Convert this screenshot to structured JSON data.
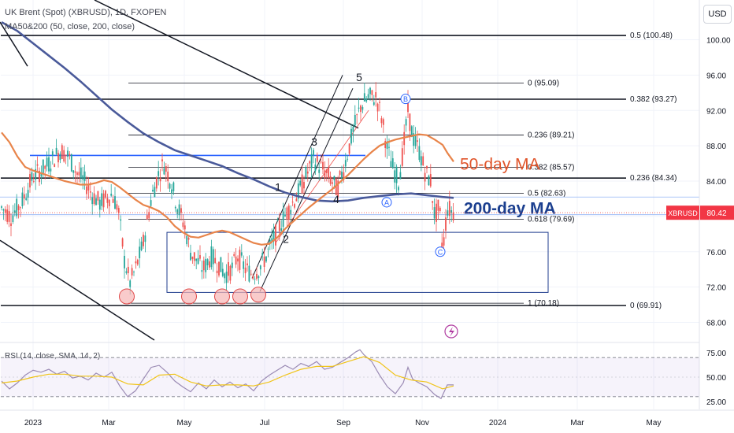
{
  "header": {
    "symbol_line": "UK Brent (Spot) (XBRUSD), 1D, FXOPEN",
    "indicator_line": "MA50&200 (50, close, 200, close)",
    "currency": "USD"
  },
  "rsi_header": "RSI (14, close, SMA, 14, 2)",
  "price_tag": {
    "symbol": "XBRUSD",
    "value": "80.42",
    "color": "#f23645"
  },
  "annotations": {
    "ma50_label": "50-day MA",
    "ma200_label": "200-day MA",
    "wave_labels": [
      "1",
      "2",
      "3",
      "4",
      "5"
    ],
    "abc_labels": [
      "A",
      "B",
      "C"
    ]
  },
  "colors": {
    "ma50": "#e8844a",
    "ma200": "#4a5a9a",
    "candle_up": "#26a69a",
    "candle_down": "#ef5350",
    "rsi": "#9b8bb4",
    "rsi_sma": "#f0c419",
    "blue_line": "#2962ff",
    "ma200_text": "#1b3f8f",
    "marker_fill": "#f7b5b5",
    "marker_stroke": "#e04a4a"
  },
  "chart_data": {
    "type": "candlestick",
    "title": "UK Brent (Spot) (XBRUSD), 1D, FXOPEN",
    "y_axis": {
      "ticks": [
        68.0,
        72.0,
        76.0,
        80.0,
        84.0,
        88.0,
        92.0,
        96.0,
        100.0
      ],
      "ylim": [
        66.0,
        104.5
      ]
    },
    "x_axis": {
      "ticks": [
        "2023",
        "Mar",
        "May",
        "Jul",
        "Sep",
        "Nov",
        "2024",
        "Mar",
        "May"
      ]
    },
    "last_price": 80.42,
    "fib_right": [
      {
        "label": "0.5 (100.48)",
        "value": 100.48
      },
      {
        "label": "0.382 (93.27)",
        "value": 93.27
      },
      {
        "label": "0.236 (84.34)",
        "value": 84.34
      },
      {
        "label": "0 (69.91)",
        "value": 69.91
      }
    ],
    "fib_inner": [
      {
        "label": "0 (95.09)",
        "value": 95.09
      },
      {
        "label": "0.236 (89.21)",
        "value": 89.21
      },
      {
        "label": "0.382 (85.57)",
        "value": 85.57
      },
      {
        "label": "0.5 (82.63)",
        "value": 82.63
      },
      {
        "label": "0.618 (79.69)",
        "value": 79.69
      },
      {
        "label": "1 (70.18)",
        "value": 70.18
      }
    ],
    "resistance_level": 86.9,
    "range_box": {
      "top": 78.2,
      "bottom": 71.4
    },
    "support_lows": [
      71.3,
      71.3,
      71.3,
      71.3,
      71.5
    ],
    "ma50": {
      "name": "50-day MA",
      "points": [
        [
          0,
          89.5
        ],
        [
          10,
          88.4
        ],
        [
          20,
          86.8
        ],
        [
          30,
          85.6
        ],
        [
          40,
          85.2
        ],
        [
          50,
          84.9
        ],
        [
          60,
          84.6
        ],
        [
          70,
          84.3
        ],
        [
          80,
          84.0
        ],
        [
          90,
          83.8
        ],
        [
          100,
          83.6
        ],
        [
          110,
          83.6
        ],
        [
          120,
          83.8
        ],
        [
          130,
          84.1
        ],
        [
          140,
          83.9
        ],
        [
          150,
          83.3
        ],
        [
          160,
          82.6
        ],
        [
          170,
          81.9
        ],
        [
          180,
          81.3
        ],
        [
          190,
          81.0
        ],
        [
          200,
          80.6
        ],
        [
          210,
          79.9
        ],
        [
          220,
          78.9
        ],
        [
          230,
          78.2
        ],
        [
          240,
          77.7
        ],
        [
          250,
          77.6
        ],
        [
          260,
          77.9
        ],
        [
          270,
          78.2
        ],
        [
          280,
          78.4
        ],
        [
          290,
          78.2
        ],
        [
          300,
          77.8
        ],
        [
          310,
          77.4
        ],
        [
          320,
          77.0
        ],
        [
          330,
          76.8
        ],
        [
          340,
          76.9
        ],
        [
          350,
          77.6
        ],
        [
          360,
          78.6
        ],
        [
          370,
          79.4
        ],
        [
          380,
          80.2
        ],
        [
          390,
          81.0
        ],
        [
          400,
          81.7
        ],
        [
          410,
          82.4
        ],
        [
          420,
          83.1
        ],
        [
          430,
          83.9
        ],
        [
          440,
          84.7
        ],
        [
          450,
          85.6
        ],
        [
          460,
          86.5
        ],
        [
          470,
          87.3
        ],
        [
          480,
          88.0
        ],
        [
          490,
          88.4
        ],
        [
          500,
          88.7
        ],
        [
          510,
          88.9
        ],
        [
          520,
          89.1
        ],
        [
          530,
          89.3
        ],
        [
          540,
          89.2
        ],
        [
          550,
          88.7
        ],
        [
          560,
          88.1
        ],
        [
          566,
          87.2
        ],
        [
          574,
          86.2
        ]
      ]
    },
    "ma200": {
      "name": "200-day MA",
      "points": [
        [
          0,
          102.0
        ],
        [
          20,
          101.0
        ],
        [
          40,
          99.6
        ],
        [
          60,
          98.2
        ],
        [
          80,
          96.8
        ],
        [
          100,
          95.3
        ],
        [
          120,
          93.7
        ],
        [
          140,
          92.1
        ],
        [
          160,
          90.7
        ],
        [
          180,
          89.4
        ],
        [
          200,
          88.4
        ],
        [
          220,
          87.5
        ],
        [
          240,
          86.9
        ],
        [
          260,
          86.3
        ],
        [
          280,
          85.7
        ],
        [
          300,
          84.9
        ],
        [
          320,
          84.2
        ],
        [
          340,
          83.4
        ],
        [
          360,
          82.7
        ],
        [
          380,
          82.2
        ],
        [
          400,
          81.8
        ],
        [
          420,
          81.7
        ],
        [
          440,
          81.8
        ],
        [
          460,
          82.1
        ],
        [
          480,
          82.3
        ],
        [
          500,
          82.5
        ],
        [
          520,
          82.6
        ],
        [
          540,
          82.4
        ],
        [
          560,
          82.2
        ],
        [
          574,
          82.1
        ]
      ]
    },
    "price_path": [
      [
        0,
        81.0
      ],
      [
        12,
        80.0
      ],
      [
        25,
        81.5
      ],
      [
        40,
        84.5
      ],
      [
        55,
        85.5
      ],
      [
        65,
        86.5
      ],
      [
        75,
        87.5
      ],
      [
        85,
        86.8
      ],
      [
        95,
        85.0
      ],
      [
        105,
        84.0
      ],
      [
        115,
        82.5
      ],
      [
        125,
        81.5
      ],
      [
        140,
        82.5
      ],
      [
        148,
        81.0
      ],
      [
        156,
        75.0
      ],
      [
        163,
        72.5
      ],
      [
        170,
        74.0
      ],
      [
        180,
        77.0
      ],
      [
        190,
        82.0
      ],
      [
        198,
        84.5
      ],
      [
        206,
        86.0
      ],
      [
        215,
        84.0
      ],
      [
        222,
        81.5
      ],
      [
        232,
        79.0
      ],
      [
        240,
        76.0
      ],
      [
        248,
        75.0
      ],
      [
        256,
        74.0
      ],
      [
        266,
        75.5
      ],
      [
        276,
        74.5
      ],
      [
        284,
        73.5
      ],
      [
        292,
        74.0
      ],
      [
        300,
        75.5
      ],
      [
        310,
        74.0
      ],
      [
        318,
        73.5
      ],
      [
        326,
        74.0
      ],
      [
        336,
        75.5
      ],
      [
        346,
        77.5
      ],
      [
        356,
        79.5
      ],
      [
        366,
        81.0
      ],
      [
        376,
        82.5
      ],
      [
        386,
        84.5
      ],
      [
        396,
        86.5
      ],
      [
        406,
        85.5
      ],
      [
        416,
        84.5
      ],
      [
        426,
        83.0
      ],
      [
        436,
        86.0
      ],
      [
        446,
        89.5
      ],
      [
        456,
        92.5
      ],
      [
        466,
        93.5
      ],
      [
        476,
        93.5
      ],
      [
        483,
        91.0
      ],
      [
        490,
        87.5
      ],
      [
        497,
        85.5
      ],
      [
        504,
        84.0
      ],
      [
        510,
        87.5
      ],
      [
        516,
        92.0
      ],
      [
        522,
        89.0
      ],
      [
        530,
        87.5
      ],
      [
        538,
        85.0
      ],
      [
        545,
        84.0
      ],
      [
        550,
        80.0
      ],
      [
        556,
        81.0
      ],
      [
        560,
        76.0
      ],
      [
        566,
        81.0
      ],
      [
        574,
        80.4
      ]
    ],
    "rsi": {
      "name": "RSI",
      "ticks": [
        25.0,
        50.0,
        75.0
      ],
      "levels": [
        30,
        70
      ],
      "points": [
        [
          0,
          46
        ],
        [
          10,
          38
        ],
        [
          20,
          44
        ],
        [
          30,
          52
        ],
        [
          40,
          57
        ],
        [
          50,
          55
        ],
        [
          60,
          58
        ],
        [
          70,
          53
        ],
        [
          80,
          56
        ],
        [
          90,
          49
        ],
        [
          100,
          51
        ],
        [
          110,
          47
        ],
        [
          120,
          54
        ],
        [
          130,
          50
        ],
        [
          140,
          55
        ],
        [
          150,
          41
        ],
        [
          160,
          30
        ],
        [
          170,
          36
        ],
        [
          180,
          48
        ],
        [
          190,
          60
        ],
        [
          200,
          62
        ],
        [
          210,
          55
        ],
        [
          220,
          46
        ],
        [
          230,
          40
        ],
        [
          240,
          35
        ],
        [
          250,
          44
        ],
        [
          260,
          38
        ],
        [
          270,
          47
        ],
        [
          280,
          40
        ],
        [
          290,
          45
        ],
        [
          300,
          39
        ],
        [
          310,
          43
        ],
        [
          320,
          36
        ],
        [
          330,
          46
        ],
        [
          340,
          52
        ],
        [
          350,
          57
        ],
        [
          360,
          62
        ],
        [
          370,
          58
        ],
        [
          380,
          64
        ],
        [
          390,
          61
        ],
        [
          400,
          66
        ],
        [
          410,
          58
        ],
        [
          420,
          60
        ],
        [
          430,
          65
        ],
        [
          440,
          70
        ],
        [
          450,
          76
        ],
        [
          455,
          78
        ],
        [
          460,
          73
        ],
        [
          470,
          66
        ],
        [
          480,
          52
        ],
        [
          490,
          40
        ],
        [
          500,
          33
        ],
        [
          510,
          44
        ],
        [
          516,
          60
        ],
        [
          522,
          48
        ],
        [
          530,
          44
        ],
        [
          540,
          40
        ],
        [
          550,
          32
        ],
        [
          558,
          28
        ],
        [
          566,
          42
        ],
        [
          574,
          42
        ]
      ]
    },
    "rsi_sma": {
      "name": "RSI SMA",
      "points": [
        [
          0,
          44
        ],
        [
          20,
          46
        ],
        [
          40,
          50
        ],
        [
          60,
          53
        ],
        [
          80,
          53
        ],
        [
          100,
          51
        ],
        [
          120,
          51
        ],
        [
          140,
          50
        ],
        [
          160,
          43
        ],
        [
          180,
          42
        ],
        [
          200,
          52
        ],
        [
          220,
          53
        ],
        [
          240,
          45
        ],
        [
          260,
          41
        ],
        [
          280,
          42
        ],
        [
          300,
          42
        ],
        [
          320,
          41
        ],
        [
          340,
          45
        ],
        [
          360,
          52
        ],
        [
          380,
          58
        ],
        [
          400,
          61
        ],
        [
          420,
          61
        ],
        [
          440,
          66
        ],
        [
          460,
          71
        ],
        [
          480,
          65
        ],
        [
          500,
          52
        ],
        [
          520,
          47
        ],
        [
          540,
          45
        ],
        [
          560,
          38
        ],
        [
          574,
          41
        ]
      ]
    }
  }
}
